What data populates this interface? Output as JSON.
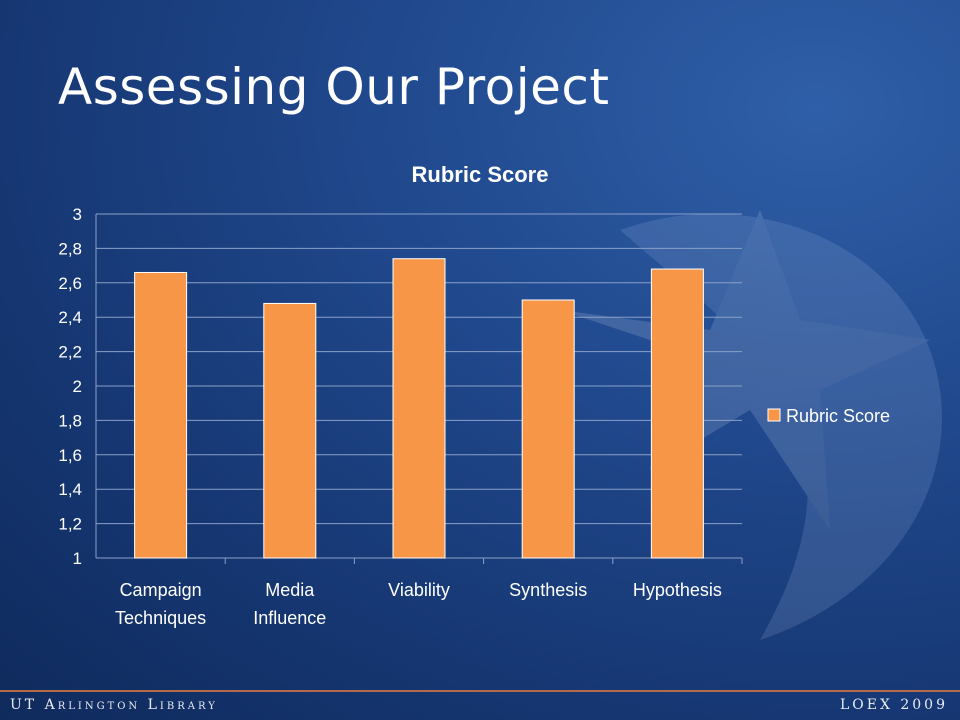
{
  "slide": {
    "title": "Assessing Our Project",
    "footer_left": "UT Arlington Library",
    "footer_right": "LOEX 2009"
  },
  "colors": {
    "bar": "#f79646",
    "grid": "#8aa0c8",
    "background": "#1c4283"
  },
  "chart_data": {
    "type": "bar",
    "title": "Rubric Score",
    "categories": [
      "Campaign\nTechniques",
      "Media\nInfluence",
      "Viability",
      "Synthesis",
      "Hypothesis"
    ],
    "series": [
      {
        "name": "Rubric Score",
        "values": [
          2.66,
          2.48,
          2.74,
          2.5,
          2.68
        ]
      }
    ],
    "ylim": [
      1,
      3
    ],
    "yticks": [
      "1",
      "1,2",
      "1,4",
      "1,6",
      "1,8",
      "2",
      "2,2",
      "2,4",
      "2,6",
      "2,8",
      "3"
    ],
    "grid": true,
    "legend": "right",
    "xlabel": "",
    "ylabel": ""
  }
}
